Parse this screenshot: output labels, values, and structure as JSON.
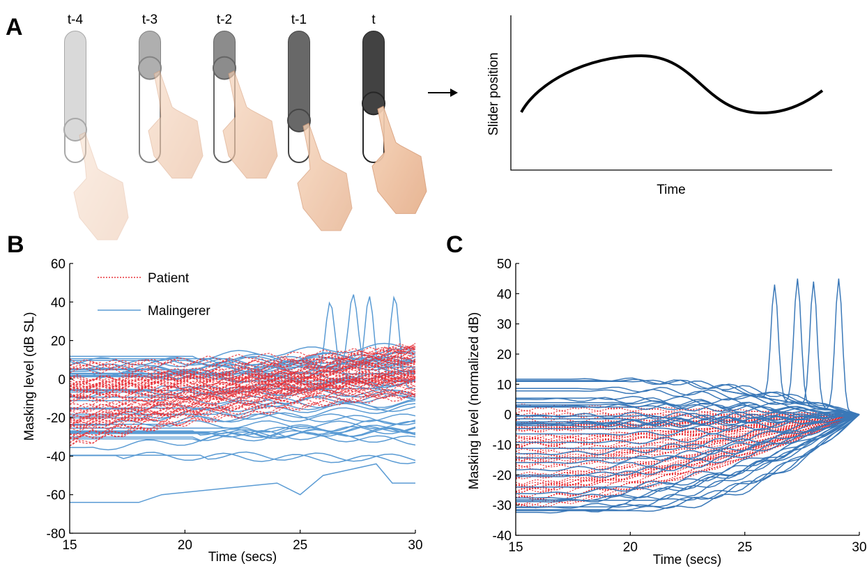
{
  "panel_a": {
    "letter": "A",
    "steps": [
      {
        "label": "t-4",
        "knob": 0.75,
        "shade": 0.18
      },
      {
        "label": "t-3",
        "knob": 0.28,
        "shade": 0.38
      },
      {
        "label": "t-2",
        "knob": 0.28,
        "shade": 0.55
      },
      {
        "label": "t-1",
        "knob": 0.68,
        "shade": 0.72
      },
      {
        "label": "t",
        "knob": 0.55,
        "shade": 0.9
      }
    ],
    "arrow_icon": "right-arrow-icon",
    "hand_icon": "pointing-hand-icon",
    "schematic": {
      "xlabel": "Time",
      "ylabel": "Slider position"
    }
  },
  "chart_data": [
    {
      "panel": "B",
      "type": "line",
      "xlabel": "Time (secs)",
      "ylabel": "Masking level (dB SL)",
      "xlim": [
        15,
        30
      ],
      "ylim": [
        -80,
        60
      ],
      "xticks": [
        15,
        20,
        25,
        30
      ],
      "yticks": [
        -80,
        -60,
        -40,
        -20,
        0,
        20,
        40,
        60
      ],
      "grid": false,
      "legend_placement": "top-left",
      "series": [
        {
          "name": "Patient",
          "color": "#e8333a",
          "style": "dotted",
          "count": 60,
          "start_range": [
            -36,
            10
          ],
          "end_range": [
            -10,
            18
          ]
        },
        {
          "name": "Malingerer",
          "color": "#5a9bd4",
          "style": "solid",
          "count": 40,
          "start_range": [
            -40,
            12
          ],
          "end_range": [
            -27,
            10
          ],
          "peaks_x": [
            26.3,
            27.3,
            28.0,
            29.1
          ],
          "peak_values": [
            40,
            44,
            43,
            43
          ],
          "outlier": {
            "x": [
              15,
              18,
              19,
              24,
              25,
              26,
              28.3,
              29,
              30
            ],
            "y": [
              -64,
              -64,
              -60,
              -54,
              -60,
              -50,
              -44,
              -54,
              -54
            ]
          }
        }
      ]
    },
    {
      "panel": "C",
      "type": "line",
      "xlabel": "Time (secs)",
      "ylabel": "Masking level (normalized dB)",
      "xlim": [
        15,
        30
      ],
      "ylim": [
        -40,
        50
      ],
      "xticks": [
        15,
        20,
        25,
        30
      ],
      "yticks": [
        -40,
        -30,
        -20,
        -10,
        0,
        10,
        20,
        30,
        40,
        50
      ],
      "grid": false,
      "series": [
        {
          "color": "#e81e25",
          "style": "dotted",
          "count": 60,
          "start_range": [
            -32,
            3
          ],
          "end_value": 0
        },
        {
          "color": "#3a78b8",
          "style": "solid",
          "count": 40,
          "start_range": [
            -33,
            12
          ],
          "end_value": 0,
          "peaks_x": [
            26.3,
            27.3,
            28.0,
            29.1
          ],
          "peak_values": [
            43,
            45,
            44,
            45
          ]
        }
      ]
    }
  ],
  "panel_b": {
    "letter": "B",
    "legend": {
      "patient": "Patient",
      "malingerer": "Malingerer"
    }
  },
  "panel_c": {
    "letter": "C"
  }
}
